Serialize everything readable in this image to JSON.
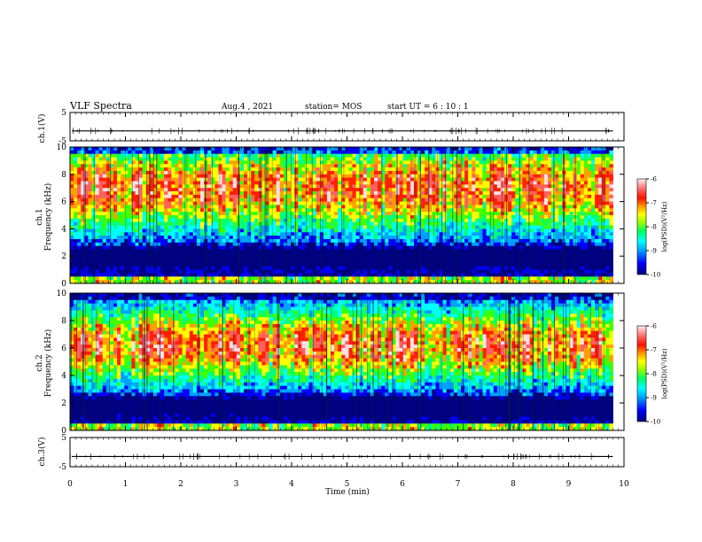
{
  "header": {
    "title": "VLF Spectra",
    "date": "Aug.4 , 2021",
    "station": "station= MOS",
    "start": "start UT = 6 : 10 : 1"
  },
  "chart_data": {
    "type": "heatmap",
    "x_axis": {
      "label": "Time (min)",
      "range": [
        0,
        10
      ],
      "ticks": [
        "0",
        "1",
        "2",
        "3",
        "4",
        "5",
        "6",
        "7",
        "8",
        "9",
        "10"
      ]
    },
    "panels": [
      {
        "id": "ch1-waveform",
        "type": "line",
        "ylabel": "ch.1(V)",
        "ylim": [
          -5,
          5
        ],
        "ticks": [
          "5",
          "-5"
        ],
        "baseline": -1.5
      },
      {
        "id": "ch1-spectrogram",
        "type": "heatmap",
        "ylabel_top": "ch.1",
        "ylabel": "Frequency (kHz)",
        "ylim": [
          0,
          10
        ],
        "ticks": [
          "10",
          "8",
          "6",
          "4",
          "2",
          "0"
        ],
        "band_center_khz": 7.0,
        "band_width_khz": 3.2,
        "notch_khz": 2.0,
        "colorbar": {
          "label": "log(PSD)(V²/Hz)",
          "range": [
            -10,
            -6
          ],
          "ticks": [
            "-6",
            "-7",
            "-8",
            "-9",
            "-10"
          ]
        }
      },
      {
        "id": "ch2-spectrogram",
        "type": "heatmap",
        "ylabel_top": "ch.2",
        "ylabel": "Frequency (kHz)",
        "ylim": [
          0,
          10
        ],
        "ticks": [
          "10",
          "8",
          "6",
          "4",
          "2",
          "0"
        ],
        "band_center_khz": 6.2,
        "band_width_khz": 2.8,
        "notch_khz": 1.8,
        "colorbar": {
          "label": "log(PSD)(V²/Hz)",
          "range": [
            -10,
            -6
          ],
          "ticks": [
            "-6",
            "-7",
            "-8",
            "-9",
            "-10"
          ]
        }
      },
      {
        "id": "ch3-waveform",
        "type": "line",
        "ylabel": "ch.3(V)",
        "ylim": [
          -5,
          5
        ],
        "ticks": [
          "5",
          "-5"
        ],
        "baseline": -1.5
      }
    ],
    "colormap": [
      "#000080",
      "#0000ff",
      "#00a0ff",
      "#00ffff",
      "#00ff80",
      "#40ff00",
      "#ffff00",
      "#ffa000",
      "#ff2000",
      "#ff6060",
      "#ffe0e0"
    ],
    "data_end_min": 9.8
  }
}
